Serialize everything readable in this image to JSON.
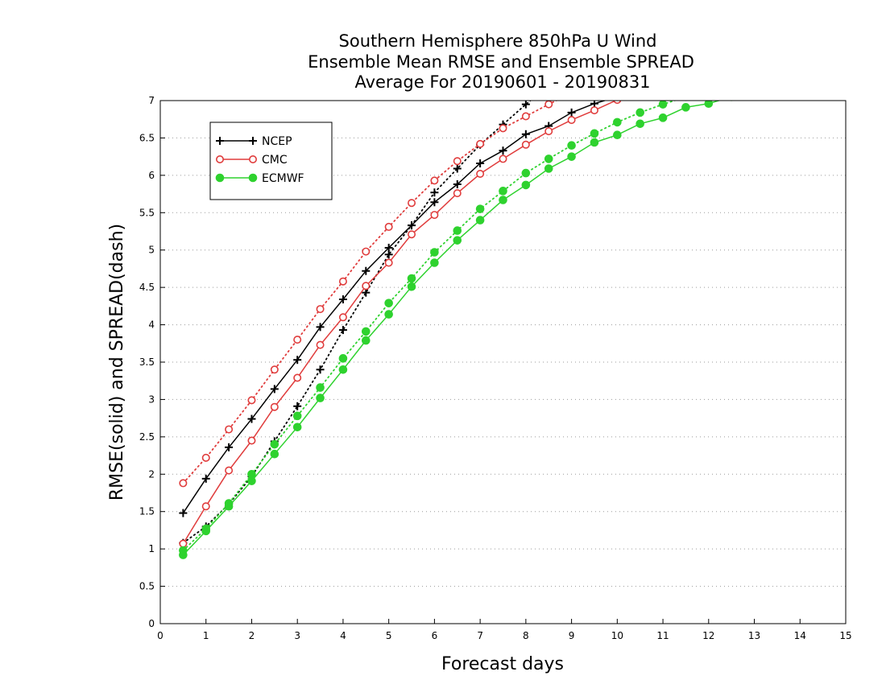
{
  "chart_data": {
    "type": "line",
    "title": [
      "Southern Hemisphere 850hPa U Wind",
      "Ensemble Mean RMSE and Ensemble SPREAD",
      "Average For 20190601 - 20190831"
    ],
    "xlabel": "Forecast days",
    "ylabel": "RMSE(solid) and SPREAD(dash)",
    "xlim": [
      0,
      15
    ],
    "ylim": [
      0,
      7
    ],
    "xticks": [
      "0",
      "1",
      "2",
      "3",
      "4",
      "5",
      "6",
      "7",
      "8",
      "9",
      "10",
      "11",
      "12",
      "13",
      "14",
      "15"
    ],
    "yticks": [
      "0",
      "0.5",
      "1",
      "1.5",
      "2",
      "2.5",
      "3",
      "3.5",
      "4",
      "4.5",
      "5",
      "5.5",
      "6",
      "6.5",
      "7"
    ],
    "grid": "horizontal dotted",
    "legend_position": "top-left",
    "series": [
      {
        "name": "NCEP",
        "kind": "rmse",
        "line": "solid",
        "color": "#000000",
        "marker": "plus",
        "x": [
          0.5,
          1,
          1.5,
          2,
          2.5,
          3,
          3.5,
          4,
          4.5,
          5,
          5.5,
          6,
          6.5,
          7,
          7.5,
          8,
          8.5,
          9,
          9.5,
          10,
          10.5
        ],
        "y": [
          1.48,
          1.94,
          2.36,
          2.74,
          3.14,
          3.53,
          3.97,
          4.34,
          4.72,
          5.03,
          5.33,
          5.64,
          5.88,
          6.16,
          6.33,
          6.55,
          6.66,
          6.84,
          6.96,
          7.05,
          7.15
        ]
      },
      {
        "name": "NCEP",
        "kind": "spread",
        "line": "dotted",
        "color": "#000000",
        "marker": "plus",
        "x": [
          0.5,
          1,
          1.5,
          2,
          2.5,
          3,
          3.5,
          4,
          4.5,
          5,
          5.5,
          6,
          6.5,
          7,
          7.5,
          8,
          8.5
        ],
        "y": [
          1.08,
          1.3,
          1.6,
          1.97,
          2.44,
          2.91,
          3.4,
          3.93,
          4.43,
          4.94,
          5.33,
          5.77,
          6.09,
          6.41,
          6.68,
          6.95,
          7.2
        ]
      },
      {
        "name": "CMC",
        "kind": "rmse",
        "line": "solid",
        "color": "#e03c3c",
        "marker": "open-circle",
        "x": [
          0.5,
          1,
          1.5,
          2,
          2.5,
          3,
          3.5,
          4,
          4.5,
          5,
          5.5,
          6,
          6.5,
          7,
          7.5,
          8,
          8.5,
          9,
          9.5,
          10,
          10.5
        ],
        "y": [
          1.07,
          1.57,
          2.05,
          2.45,
          2.9,
          3.29,
          3.73,
          4.1,
          4.52,
          4.83,
          5.21,
          5.47,
          5.76,
          6.02,
          6.22,
          6.41,
          6.59,
          6.74,
          6.87,
          7.01,
          7.1
        ]
      },
      {
        "name": "CMC",
        "kind": "spread",
        "line": "dotted",
        "color": "#e03c3c",
        "marker": "open-circle",
        "x": [
          0.5,
          1,
          1.5,
          2,
          2.5,
          3,
          3.5,
          4,
          4.5,
          5,
          5.5,
          6,
          6.5,
          7,
          7.5,
          8,
          8.5,
          9
        ],
        "y": [
          1.88,
          2.22,
          2.6,
          2.99,
          3.4,
          3.8,
          4.21,
          4.58,
          4.98,
          5.31,
          5.63,
          5.93,
          6.19,
          6.42,
          6.63,
          6.79,
          6.95,
          7.1
        ]
      },
      {
        "name": "ECMWF",
        "kind": "rmse",
        "line": "solid",
        "color": "#2ed22e",
        "marker": "filled-circle",
        "x": [
          0.5,
          1,
          1.5,
          2,
          2.5,
          3,
          3.5,
          4,
          4.5,
          5,
          5.5,
          6,
          6.5,
          7,
          7.5,
          8,
          8.5,
          9,
          9.5,
          10,
          10.5,
          11,
          11.5,
          12,
          12.5
        ],
        "y": [
          0.92,
          1.24,
          1.57,
          1.91,
          2.27,
          2.63,
          3.02,
          3.4,
          3.79,
          4.14,
          4.51,
          4.83,
          5.13,
          5.4,
          5.67,
          5.87,
          6.09,
          6.25,
          6.44,
          6.54,
          6.69,
          6.77,
          6.91,
          6.96,
          7.05
        ]
      },
      {
        "name": "ECMWF",
        "kind": "spread",
        "line": "dotted",
        "color": "#2ed22e",
        "marker": "filled-circle",
        "x": [
          0.5,
          1,
          1.5,
          2,
          2.5,
          3,
          3.5,
          4,
          4.5,
          5,
          5.5,
          6,
          6.5,
          7,
          7.5,
          8,
          8.5,
          9,
          9.5,
          10,
          10.5,
          11,
          11.5
        ],
        "y": [
          0.98,
          1.27,
          1.61,
          2.0,
          2.4,
          2.78,
          3.16,
          3.55,
          3.91,
          4.29,
          4.62,
          4.97,
          5.26,
          5.55,
          5.79,
          6.03,
          6.22,
          6.4,
          6.56,
          6.71,
          6.84,
          6.95,
          7.05
        ]
      }
    ],
    "legend": [
      {
        "label": "NCEP",
        "color": "#000000",
        "marker": "plus"
      },
      {
        "label": "CMC",
        "color": "#e03c3c",
        "marker": "open-circle"
      },
      {
        "label": "ECMWF",
        "color": "#2ed22e",
        "marker": "filled-circle"
      }
    ]
  }
}
